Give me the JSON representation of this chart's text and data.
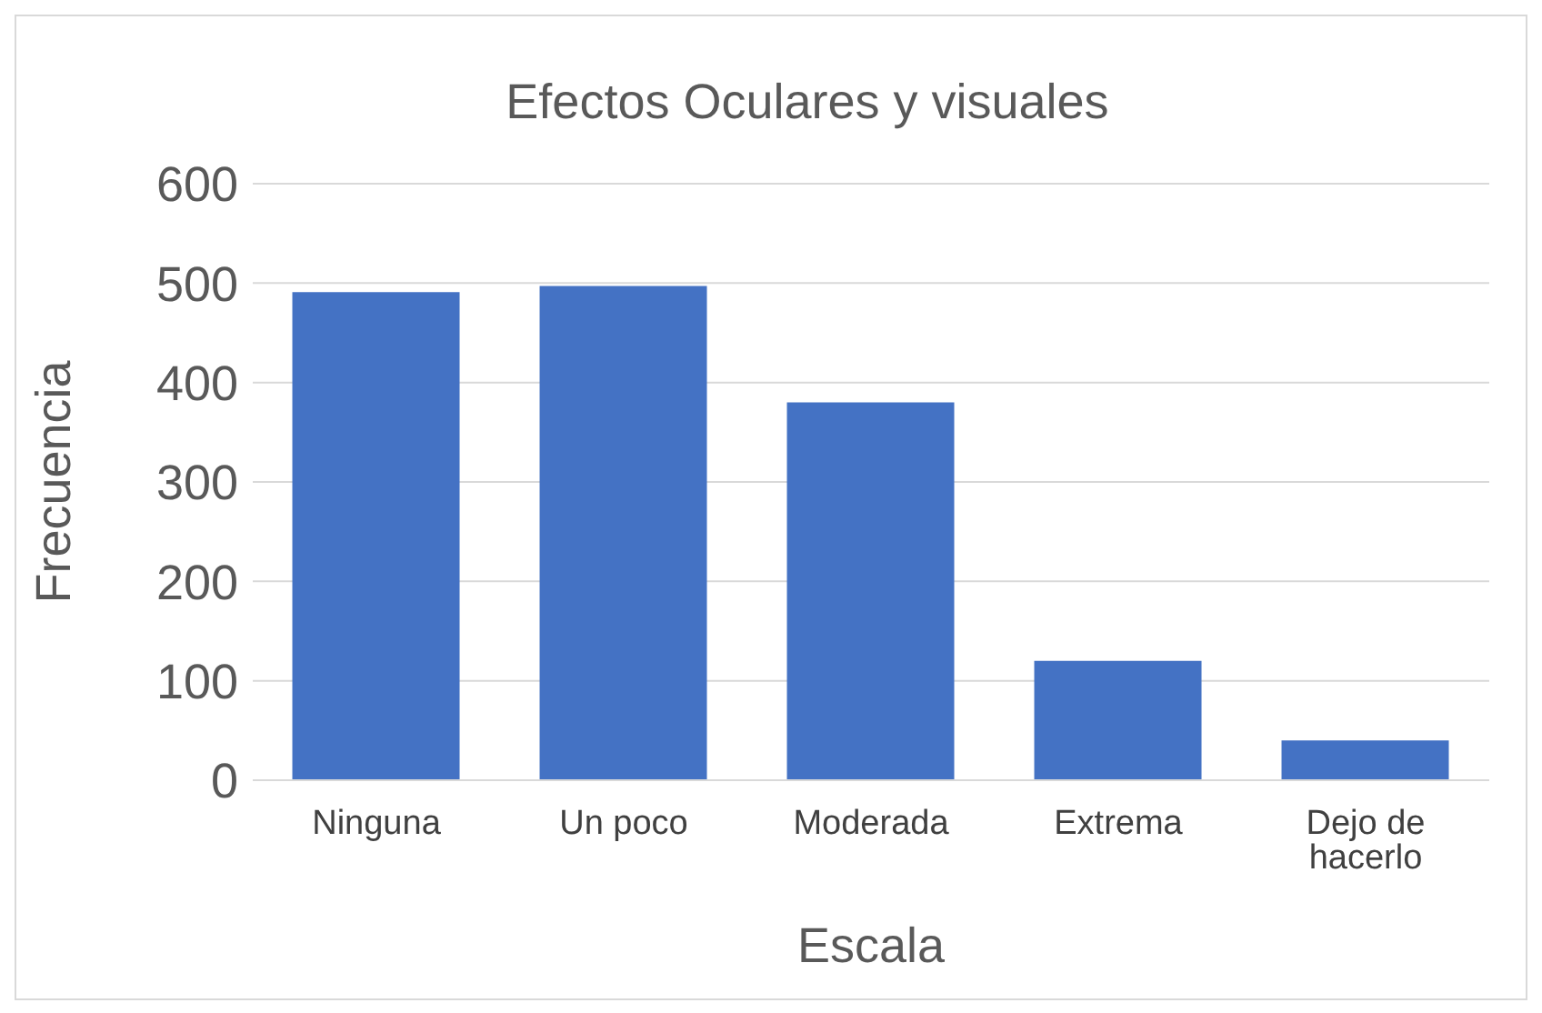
{
  "chart_data": {
    "type": "bar",
    "title": "Efectos Oculares y visuales",
    "xlabel": "Escala",
    "ylabel": "Frecuencia",
    "categories": [
      "Ninguna",
      "Un poco",
      "Moderada",
      "Extrema",
      "Dejo de hacerlo"
    ],
    "values": [
      491,
      497,
      380,
      120,
      40
    ],
    "color": "#4472c4",
    "ylim": [
      0,
      600
    ],
    "yticks": [
      0,
      100,
      200,
      300,
      400,
      500,
      600
    ],
    "grid": "y"
  }
}
